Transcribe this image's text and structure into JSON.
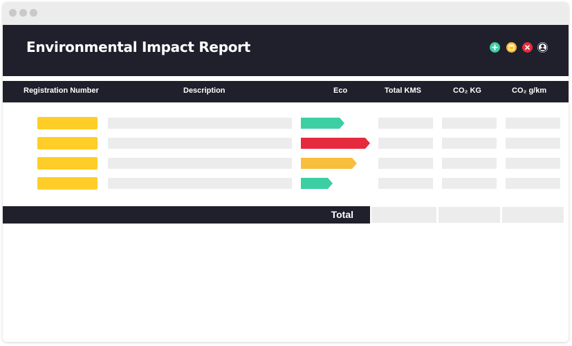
{
  "header": {
    "title": "Environmental Impact Report",
    "actions": [
      {
        "name": "add",
        "icon": "plus-icon",
        "color": "#3ccfa4"
      },
      {
        "name": "save",
        "icon": "save-icon",
        "color": "#f8be2f"
      },
      {
        "name": "close",
        "icon": "close-icon",
        "color": "#eb2a3a"
      },
      {
        "name": "user",
        "icon": "user-icon",
        "color": "#ffffff"
      }
    ]
  },
  "table": {
    "columns": [
      "Registration Number",
      "Description",
      "Eco",
      "Total KMS",
      "CO₂ KG",
      "CO₂ g/km"
    ],
    "rows": [
      {
        "eco_level": 0.5,
        "eco_color": "#3ccfa4"
      },
      {
        "eco_level": 0.8,
        "eco_color": "#e52a3e"
      },
      {
        "eco_level": 0.65,
        "eco_color": "#f8be3c"
      },
      {
        "eco_level": 0.37,
        "eco_color": "#3ccfa4"
      }
    ],
    "total_label": "Total"
  },
  "colors": {
    "dark": "#1f202b",
    "placeholder": "#ececec",
    "registration": "#fecd28"
  }
}
